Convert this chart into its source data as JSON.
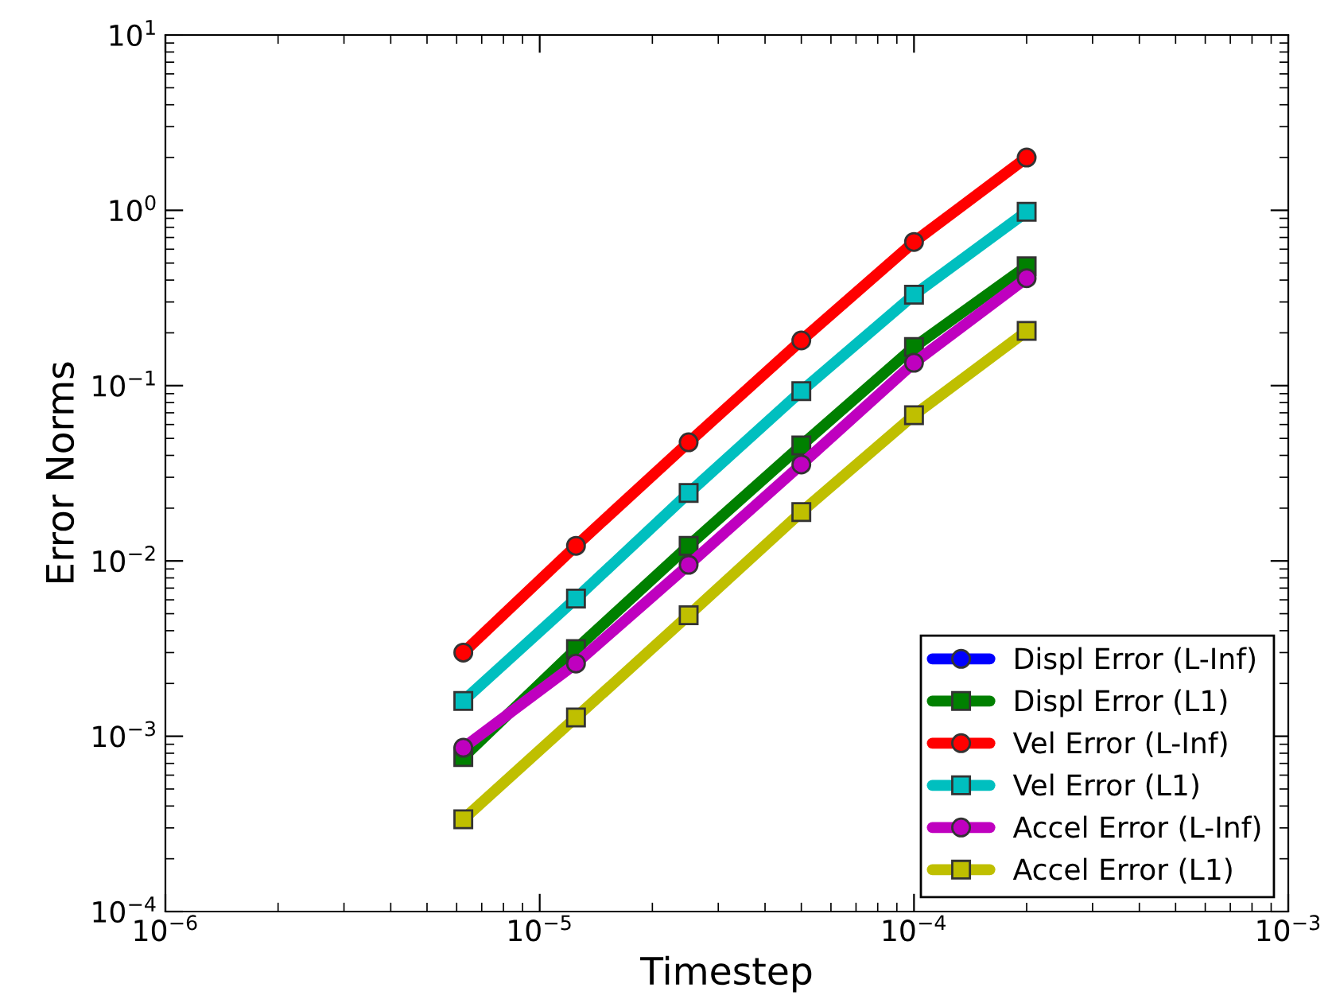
{
  "chart_data": {
    "type": "line",
    "xlabel": "Timestep",
    "ylabel": "Error Norms",
    "log": "xy",
    "x": [
      6.25e-06,
      1.25e-05,
      2.5e-05,
      5e-05,
      0.0001,
      0.0002
    ],
    "xlim": [
      1e-06,
      0.001
    ],
    "xticks": [
      {
        "value": 1e-06,
        "label": "10$^{−6}$"
      },
      {
        "value": 1e-05,
        "label": "10$^{−5}$"
      },
      {
        "value": 0.0001,
        "label": "10$^{−4}$"
      },
      {
        "value": 0.001,
        "label": "10$^{−3}$"
      }
    ],
    "ylim": [
      0.0001,
      10
    ],
    "yticks": [
      {
        "value": 0.0001,
        "label": "10$^{−4}$"
      },
      {
        "value": 0.001,
        "label": "10$^{−3}$"
      },
      {
        "value": 0.01,
        "label": "10$^{−2}$"
      },
      {
        "value": 0.1,
        "label": "10$^{−1}$"
      },
      {
        "value": 1,
        "label": "10$^{0}$"
      },
      {
        "value": 10,
        "label": "10$^{1}$"
      }
    ],
    "grid": false,
    "legend": "bottom right",
    "line_style": "solid",
    "series": [
      {
        "name": "Displ Error (L-Inf)",
        "color": "#0000ff",
        "marker": "circle",
        "values": [
          null,
          null,
          null,
          null,
          null,
          null
        ]
      },
      {
        "name": "Displ Error (L1)",
        "color": "#008000",
        "marker": "square",
        "values": [
          0.00076,
          0.00314,
          0.0122,
          0.0456,
          0.166,
          0.48
        ]
      },
      {
        "name": "Vel Error (L-Inf)",
        "color": "#ff0000",
        "marker": "circle",
        "values": [
          0.003,
          0.0122,
          0.0475,
          0.181,
          0.66,
          2.0
        ]
      },
      {
        "name": "Vel Error (L1)",
        "color": "#00bfbf",
        "marker": "square",
        "values": [
          0.00159,
          0.0061,
          0.0244,
          0.093,
          0.33,
          0.98
        ]
      },
      {
        "name": "Accel Error (L-Inf)",
        "color": "#bf00bf",
        "marker": "circle",
        "values": [
          0.00086,
          0.0026,
          0.0095,
          0.0355,
          0.135,
          0.41
        ]
      },
      {
        "name": "Accel Error (L1)",
        "color": "#bfbf00",
        "marker": "square",
        "values": [
          0.000336,
          0.00128,
          0.0049,
          0.019,
          0.0678,
          0.205
        ]
      }
    ]
  }
}
